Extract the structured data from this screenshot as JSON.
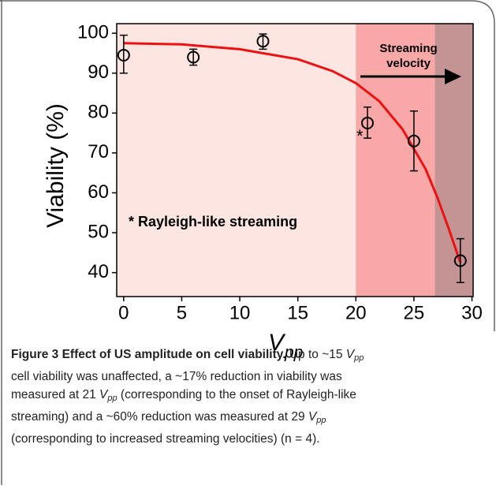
{
  "chart_data": {
    "type": "scatter",
    "x_label": {
      "main": "V",
      "sub": "pp"
    },
    "y_label": "Viability (%)",
    "x": [
      0,
      6,
      12,
      21,
      25,
      29
    ],
    "values": [
      94.5,
      94,
      98,
      77.5,
      73,
      43
    ],
    "errors_low": [
      4.5,
      2,
      2,
      3.8,
      7.5,
      5.5
    ],
    "errors_high": [
      5,
      2,
      1.8,
      4,
      7.5,
      5.5
    ],
    "color": "#000000",
    "fit": {
      "x": [
        0,
        5,
        10,
        15,
        18,
        20,
        22,
        24,
        26,
        27,
        28,
        29
      ],
      "values": [
        97.5,
        97.2,
        96,
        93.5,
        90.5,
        87.5,
        83,
        76,
        66,
        59,
        51,
        42.5
      ],
      "color": "#ee1111"
    },
    "regions": [
      {
        "from": -0.6,
        "to": 20,
        "color": "#fde6e1"
      },
      {
        "from": 20,
        "to": 26.8,
        "color": "#f9a8a8"
      },
      {
        "from": 26.8,
        "to": 30.1,
        "color": "#c49393"
      }
    ],
    "xlim": [
      -0.6,
      30.1
    ],
    "xticks": [
      0,
      5,
      10,
      15,
      20,
      25,
      30
    ],
    "ylim": [
      34,
      102.4
    ],
    "yticks": [
      40,
      50,
      60,
      70,
      80,
      90,
      100
    ],
    "annotations": {
      "asterisk": "*",
      "streaming_note": "* Rayleigh-like streaming",
      "velocity_label": [
        "Streaming",
        "velocity"
      ]
    }
  },
  "caption": {
    "lines": [
      [
        {
          "text": "Figure 3 Effect of US amplitude on cell viability.",
          "style": "bold"
        },
        {
          "text": " Up to ~15 "
        },
        {
          "text": "V",
          "style": "italic"
        },
        {
          "text": "pp",
          "style": "sub"
        }
      ],
      [
        {
          "text": "cell viability was unaffected, a ~17% reduction in viability was"
        }
      ],
      [
        {
          "text": "measured at 21 "
        },
        {
          "text": "V",
          "style": "italic"
        },
        {
          "text": "pp",
          "style": "sub"
        },
        {
          "text": " (corresponding to the onset of Rayleigh-like"
        }
      ],
      [
        {
          "text": "streaming) and a ~60% reduction was measured at 29 "
        },
        {
          "text": "V",
          "style": "italic"
        },
        {
          "text": "pp",
          "style": "sub"
        }
      ],
      [
        {
          "text": "(corresponding to increased streaming velocities) (n = 4)."
        }
      ]
    ]
  }
}
